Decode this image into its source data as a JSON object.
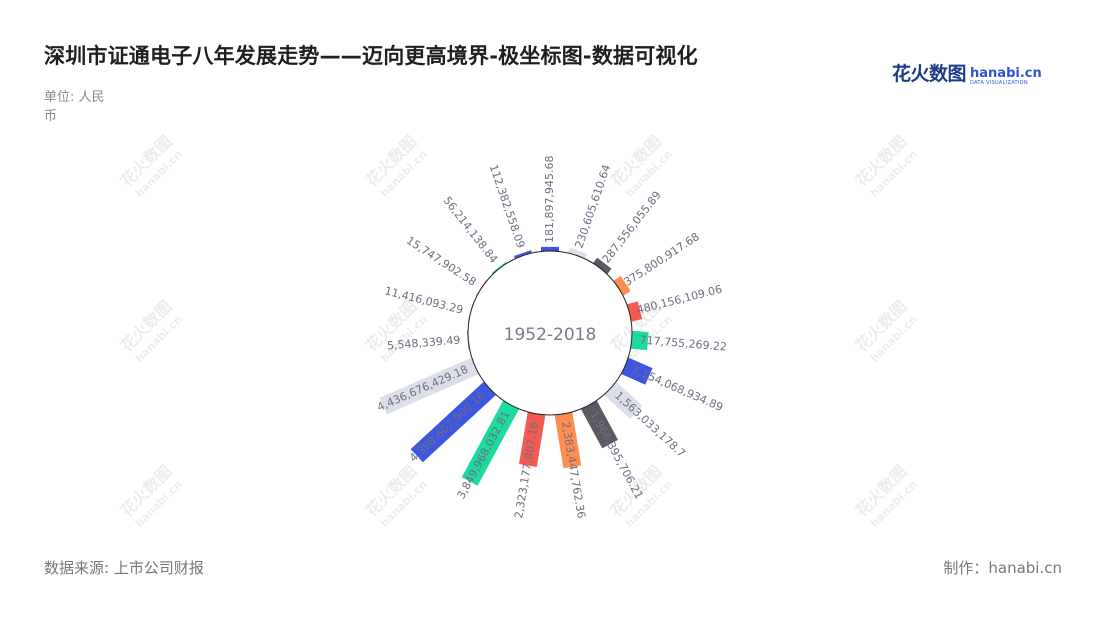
{
  "title": "深圳市证通电子八年发展走势——迈向更高境界-极坐标图-数据可视化",
  "unit": "单位: 人民币",
  "logo": {
    "cn": "花火数图",
    "en": "hanabi.cn",
    "sub": "DATA VISUALIZATION"
  },
  "watermark": {
    "cn": "花火数图",
    "en": "hanabi.cn"
  },
  "footer": {
    "source": "数据来源: 上市公司财报",
    "maker": "制作：hanabi.cn"
  },
  "colors": {
    "palette": [
      "#3d57e0",
      "#dcdfe8",
      "#5a5b62",
      "#ff8c50",
      "#f45a52",
      "#1ed9a0"
    ],
    "text": "#6e6e80",
    "axis": "#222222"
  },
  "chart_data": {
    "type": "bar",
    "polar": true,
    "center_label": "1952-2018",
    "order": "clockwise from top",
    "series": [
      {
        "values": [
          181897945.68,
          230605610.64,
          287556055.89,
          375800917.68,
          480156109.06,
          717755269.22,
          1154068934.89,
          1563033178.7,
          1966395706.21,
          2383447762.36,
          2323177807.16,
          3849968032.81,
          4398607900.16,
          4436676429.18,
          5548339.49,
          11416093.29,
          15747902.58,
          56214138.84,
          112382558.09
        ],
        "labels": [
          "181,897,945.68",
          "230,605,610.64",
          "287,556,055.89",
          "375,800,917.68",
          "480,156,109.06",
          "717,755,269.22",
          "1,154,068,934.89",
          "1,563,033,178.7",
          "1,966,395,706.21",
          "2,383,447,762.36",
          "2,323,177,807.16",
          "3,849,968,032.81",
          "4,398,607,900.16",
          "4,436,676,429.18",
          "5,548,339.49",
          "11,416,093.29",
          "15,747,902.58",
          "56,214,138.84",
          "112,382,558.09"
        ]
      }
    ]
  }
}
